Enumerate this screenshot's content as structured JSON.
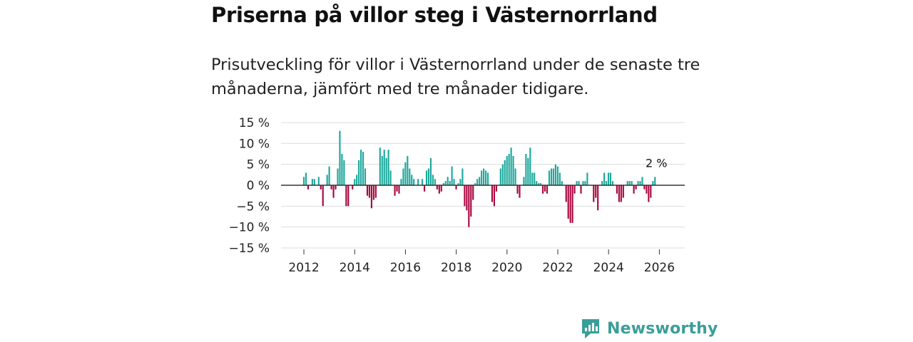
{
  "title": "Priserna på villor steg i Västernorrland",
  "subtitle": "Prisutveckling för villor i Västernorrland under de senaste tre månaderna, jämfört med tre månader tidigare.",
  "brand": "Newsworthy",
  "colors": {
    "positive": "#1ba89c",
    "negative": "#a8063f",
    "grid": "#dddddd",
    "zero_line": "#333333",
    "brand": "#3a9e99"
  },
  "chart_data": {
    "type": "bar",
    "title": "Priserna på villor steg i Västernorrland",
    "xlabel": "",
    "ylabel": "",
    "unit": "%",
    "ylim": [
      -15,
      15
    ],
    "xlim": [
      2011.1,
      2027.0
    ],
    "y_ticks": [
      15,
      10,
      5,
      0,
      -5,
      -10,
      -15
    ],
    "y_tick_labels": [
      "15 %",
      "10 %",
      "5 %",
      "0 %",
      "−5 %",
      "−10 %",
      "−15 %"
    ],
    "x_ticks": [
      2012,
      2014,
      2016,
      2018,
      2020,
      2022,
      2024,
      2026
    ],
    "x_tick_labels": [
      "2012",
      "2014",
      "2016",
      "2018",
      "2020",
      "2022",
      "2024",
      "2026"
    ],
    "start": 2012.0,
    "step": 0.0833,
    "values": [
      2,
      3,
      -1,
      0,
      1.5,
      1.5,
      0,
      2,
      -1,
      -5,
      0,
      2.5,
      4.5,
      -1,
      -3,
      -1,
      4,
      13,
      7.5,
      6,
      -5,
      -5,
      0,
      -1,
      1.5,
      2.5,
      6,
      8.5,
      8,
      4,
      -2.5,
      -3,
      -5.5,
      -3.5,
      -3,
      0,
      9,
      7,
      8.5,
      6.5,
      8.5,
      3.5,
      0,
      -2.5,
      -1.5,
      -2,
      1.5,
      4,
      5.5,
      7,
      4,
      2.5,
      1.5,
      0,
      1.5,
      0,
      1.5,
      -1.5,
      3.5,
      4,
      6.5,
      2.5,
      1.5,
      -1,
      -2,
      -1.5,
      0.5,
      1,
      2,
      1,
      4.5,
      1.5,
      -1,
      0.5,
      1.5,
      4,
      -5,
      -6,
      -10,
      -7.5,
      -3.5,
      0.5,
      1.5,
      2,
      3.5,
      4,
      3.5,
      3,
      0,
      -4,
      -5,
      -1.5,
      0,
      4,
      5,
      6,
      7,
      7.5,
      9,
      7,
      4,
      -2,
      -3,
      0,
      2,
      7.5,
      6.5,
      9,
      3,
      3,
      1,
      0.5,
      0.5,
      -2,
      -1.5,
      -2,
      3.5,
      4,
      4,
      5,
      4.5,
      3,
      1,
      0,
      -4,
      -8,
      -9,
      -9,
      -2,
      1,
      1,
      -2,
      1,
      1,
      3,
      0,
      0,
      -4,
      -3,
      -6,
      0,
      1,
      3,
      1,
      3,
      3,
      1,
      0,
      -2,
      -4,
      -4,
      -3,
      0,
      1,
      1,
      1,
      -2,
      -1,
      1,
      1,
      2,
      -1,
      -2,
      -4,
      -3,
      1,
      2
    ],
    "annotations": [
      {
        "text": "2 %",
        "target": "last_bar"
      }
    ]
  }
}
